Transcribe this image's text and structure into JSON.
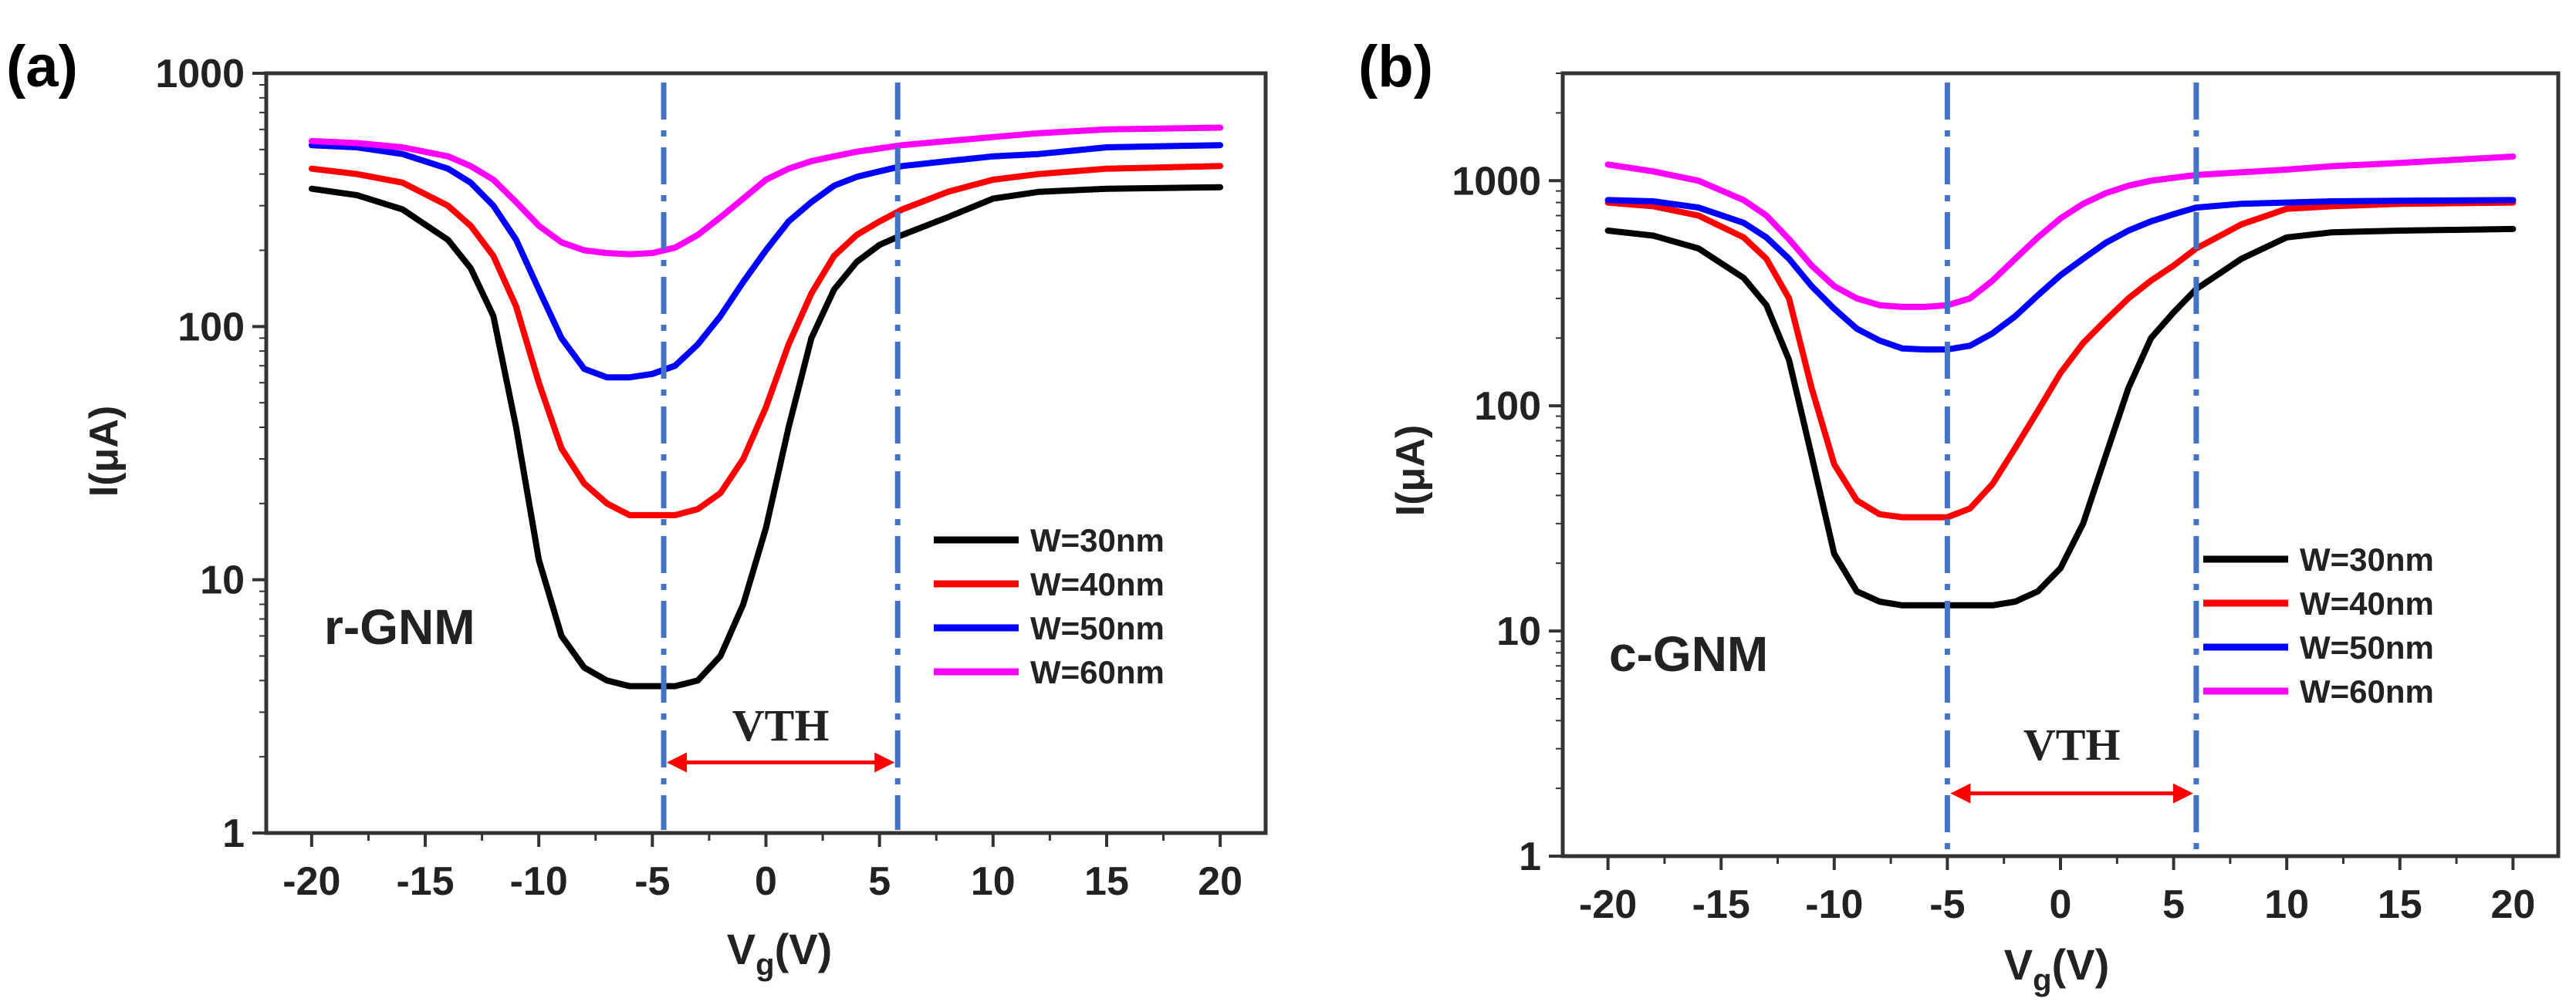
{
  "chart_data": [
    {
      "type": "line",
      "panel_label": "(a)",
      "annotation": "r-GNM",
      "xlabel_main": "V",
      "xlabel_sub": "g",
      "xlabel_unit": "(V)",
      "ylabel": "I(μA)",
      "yscale": "log",
      "xlim": [
        -22,
        22
      ],
      "ylim": [
        1,
        1000
      ],
      "x_ticks": [
        -20,
        -15,
        -10,
        -5,
        0,
        5,
        10,
        15,
        20
      ],
      "x_tick_labels": [
        "-20",
        "-15",
        "-10",
        "-5",
        "0",
        "5",
        "10",
        "15",
        "20"
      ],
      "y_ticks": [
        1,
        10,
        100,
        1000
      ],
      "y_tick_labels": [
        "1",
        "10",
        "100",
        "1000"
      ],
      "vlines": [
        -4.5,
        5.8
      ],
      "vth_label": "VTH",
      "vth_range": [
        -4.5,
        5.8
      ],
      "vth_y": 1.9,
      "legend_position": "right",
      "x": [
        -20,
        -18,
        -16,
        -14,
        -13,
        -12,
        -11,
        -10,
        -9,
        -8,
        -7,
        -6,
        -5,
        -4,
        -3,
        -2,
        -1,
        0,
        1,
        2,
        3,
        4,
        5,
        6,
        8,
        10,
        12,
        15,
        20
      ],
      "series": [
        {
          "name": "W=30nm",
          "color": "#000000",
          "values": [
            350,
            330,
            290,
            220,
            170,
            110,
            40,
            12,
            6,
            4.5,
            4,
            3.8,
            3.8,
            3.8,
            4,
            5,
            8,
            16,
            40,
            90,
            140,
            180,
            210,
            230,
            270,
            320,
            340,
            350,
            355
          ]
        },
        {
          "name": "W=40nm",
          "color": "#ff0000",
          "values": [
            420,
            400,
            370,
            300,
            250,
            190,
            120,
            60,
            33,
            24,
            20,
            18,
            18,
            18,
            19,
            22,
            30,
            48,
            85,
            135,
            190,
            230,
            260,
            290,
            340,
            380,
            400,
            420,
            430
          ]
        },
        {
          "name": "W=50nm",
          "color": "#0000ff",
          "values": [
            520,
            510,
            480,
            420,
            370,
            300,
            220,
            140,
            90,
            68,
            63,
            63,
            65,
            70,
            85,
            110,
            150,
            200,
            260,
            310,
            360,
            390,
            410,
            430,
            450,
            470,
            480,
            510,
            520
          ]
        },
        {
          "name": "W=60nm",
          "color": "#ff00ff",
          "values": [
            540,
            530,
            510,
            470,
            430,
            380,
            310,
            250,
            215,
            200,
            195,
            193,
            195,
            205,
            230,
            270,
            320,
            380,
            420,
            450,
            470,
            490,
            505,
            520,
            540,
            560,
            580,
            600,
            610
          ]
        }
      ]
    },
    {
      "type": "line",
      "panel_label": "(b)",
      "annotation": "c-GNM",
      "xlabel_main": "V",
      "xlabel_sub": "g",
      "xlabel_unit": "(V)",
      "ylabel": "I(μA)",
      "yscale": "log",
      "xlim": [
        -22,
        22
      ],
      "ylim": [
        1,
        3000
      ],
      "x_ticks": [
        -20,
        -15,
        -10,
        -5,
        0,
        5,
        10,
        15,
        20
      ],
      "x_tick_labels": [
        "-20",
        "-15",
        "-10",
        "-5",
        "0",
        "5",
        "10",
        "15",
        "20"
      ],
      "y_ticks": [
        1,
        10,
        100,
        1000
      ],
      "y_tick_labels": [
        "1",
        "10",
        "100",
        "1000"
      ],
      "vlines": [
        -5,
        6
      ],
      "vth_label": "VTH",
      "vth_range": [
        -5,
        6
      ],
      "vth_y": 1.9,
      "legend_position": "right",
      "x": [
        -20,
        -18,
        -16,
        -14,
        -13,
        -12,
        -11,
        -10,
        -9,
        -8,
        -7,
        -6,
        -5,
        -4,
        -3,
        -2,
        -1,
        0,
        1,
        2,
        3,
        4,
        5,
        6,
        8,
        10,
        12,
        15,
        20
      ],
      "series": [
        {
          "name": "W=30nm",
          "color": "#000000",
          "values": [
            600,
            570,
            500,
            370,
            280,
            160,
            60,
            22,
            15,
            13.5,
            13,
            13,
            13,
            13,
            13,
            13.5,
            15,
            19,
            30,
            60,
            120,
            200,
            260,
            330,
            450,
            560,
            590,
            600,
            610
          ]
        },
        {
          "name": "W=40nm",
          "color": "#ff0000",
          "values": [
            800,
            770,
            700,
            560,
            450,
            300,
            120,
            55,
            38,
            33,
            32,
            32,
            32,
            35,
            45,
            65,
            95,
            140,
            190,
            240,
            300,
            360,
            420,
            500,
            640,
            750,
            770,
            790,
            800
          ]
        },
        {
          "name": "W=50nm",
          "color": "#0000ff",
          "values": [
            820,
            810,
            760,
            650,
            560,
            450,
            340,
            270,
            220,
            195,
            180,
            178,
            178,
            185,
            210,
            250,
            310,
            380,
            450,
            530,
            600,
            660,
            710,
            760,
            790,
            800,
            810,
            815,
            820
          ]
        },
        {
          "name": "W=60nm",
          "color": "#ff00ff",
          "values": [
            1180,
            1100,
            1000,
            820,
            700,
            550,
            420,
            340,
            300,
            280,
            275,
            275,
            280,
            300,
            360,
            450,
            560,
            680,
            790,
            880,
            950,
            1000,
            1030,
            1060,
            1090,
            1120,
            1160,
            1200,
            1280
          ]
        }
      ]
    }
  ]
}
